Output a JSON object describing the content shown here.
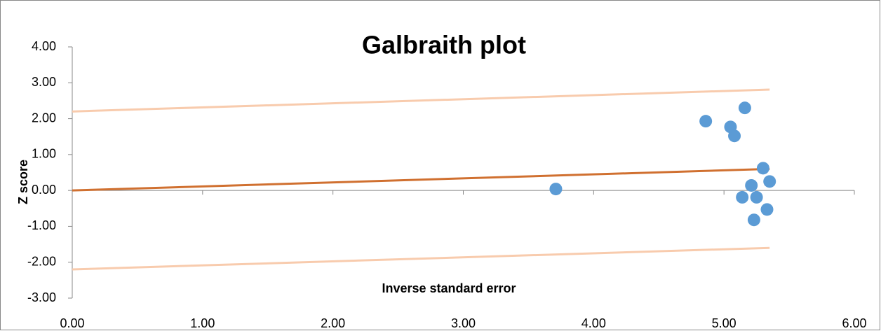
{
  "chart_data": {
    "type": "scatter",
    "title": "Galbraith plot",
    "xlabel": "Inverse standard error",
    "ylabel": "Z score",
    "xlim": [
      0,
      6
    ],
    "ylim": [
      -3,
      4
    ],
    "xticks": [
      {
        "value": 0,
        "label": "0.00"
      },
      {
        "value": 1,
        "label": "1.00"
      },
      {
        "value": 2,
        "label": "2.00"
      },
      {
        "value": 3,
        "label": "3.00"
      },
      {
        "value": 4,
        "label": "4.00"
      },
      {
        "value": 5,
        "label": "5.00"
      },
      {
        "value": 6,
        "label": "6.00"
      }
    ],
    "yticks": [
      {
        "value": -3,
        "label": "-3.00"
      },
      {
        "value": -2,
        "label": "-2.00"
      },
      {
        "value": -1,
        "label": "-1.00"
      },
      {
        "value": 0,
        "label": "0.00"
      },
      {
        "value": 1,
        "label": "1.00"
      },
      {
        "value": 2,
        "label": "2.00"
      },
      {
        "value": 3,
        "label": "3.00"
      },
      {
        "value": 4,
        "label": "4.00"
      }
    ],
    "series": [
      {
        "color": "#5b9bd5",
        "mode": "markers",
        "x": [
          3.71,
          4.86,
          5.05,
          5.08,
          5.16,
          5.3,
          5.21,
          5.35,
          5.14,
          5.25,
          5.33,
          5.23
        ],
        "values": [
          0.04,
          1.93,
          1.77,
          1.52,
          2.3,
          0.62,
          0.14,
          0.25,
          -0.19,
          -0.19,
          -0.53,
          -0.82
        ]
      },
      {
        "color": "#d07030",
        "mode": "line",
        "x": [
          0,
          5.35
        ],
        "values": [
          0,
          0.6
        ]
      },
      {
        "color": "#f8cbad",
        "mode": "line",
        "x": [
          0,
          5.35
        ],
        "values": [
          2.2,
          2.81
        ]
      },
      {
        "color": "#f8cbad",
        "mode": "line",
        "x": [
          0,
          5.35
        ],
        "values": [
          -2.2,
          -1.6
        ]
      }
    ]
  }
}
